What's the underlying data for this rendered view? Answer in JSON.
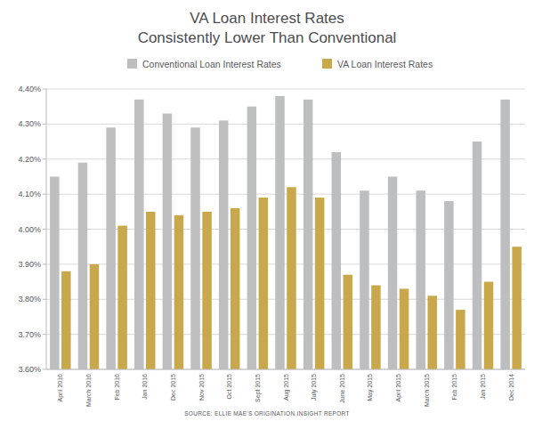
{
  "chart_data": {
    "type": "bar",
    "title": "VA Loan Interest Rates",
    "subtitle": "Consistently Lower Than Conventional",
    "annotations": [
      "SOURCE: ELLIE MAE'S ORIGINATION INSIGHT REPORT"
    ],
    "categories": [
      "April 2016",
      "March 2016",
      "Feb 2016",
      "Jan 2016",
      "Dec 2015",
      "Nov 2015",
      "Oct 2015",
      "Sept 2015",
      "Aug 2015",
      "July 2015",
      "June 2015",
      "May 2015",
      "April 2015",
      "March 2015",
      "Feb 2015",
      "Jan 2015",
      "Dec 2014"
    ],
    "series": [
      {
        "name": "Conventional Loan Interest Rates",
        "color": "#bcbec0",
        "values": [
          4.15,
          4.19,
          4.29,
          4.37,
          4.33,
          4.29,
          4.31,
          4.35,
          4.38,
          4.37,
          4.22,
          4.11,
          4.15,
          4.11,
          4.08,
          4.25,
          4.37
        ]
      },
      {
        "name": "VA Loan Interest Rates",
        "color": "#c9a84c",
        "values": [
          3.88,
          3.9,
          4.01,
          4.05,
          4.04,
          4.05,
          4.06,
          4.09,
          4.12,
          4.09,
          3.87,
          3.84,
          3.83,
          3.81,
          3.77,
          3.85,
          3.95
        ]
      }
    ],
    "ylim": [
      3.6,
      4.4
    ],
    "yticks": [
      {
        "value": 3.6,
        "label": "3.60%"
      },
      {
        "value": 3.7,
        "label": "3.70%"
      },
      {
        "value": 3.8,
        "label": "3.80%"
      },
      {
        "value": 3.9,
        "label": "3.90%"
      },
      {
        "value": 4.0,
        "label": "4.00%"
      },
      {
        "value": 4.1,
        "label": "4.10%"
      },
      {
        "value": 4.2,
        "label": "4.20%"
      },
      {
        "value": 4.3,
        "label": "4.30%"
      },
      {
        "value": 4.4,
        "label": "4.40%"
      }
    ],
    "grid": true,
    "legend": "top"
  }
}
